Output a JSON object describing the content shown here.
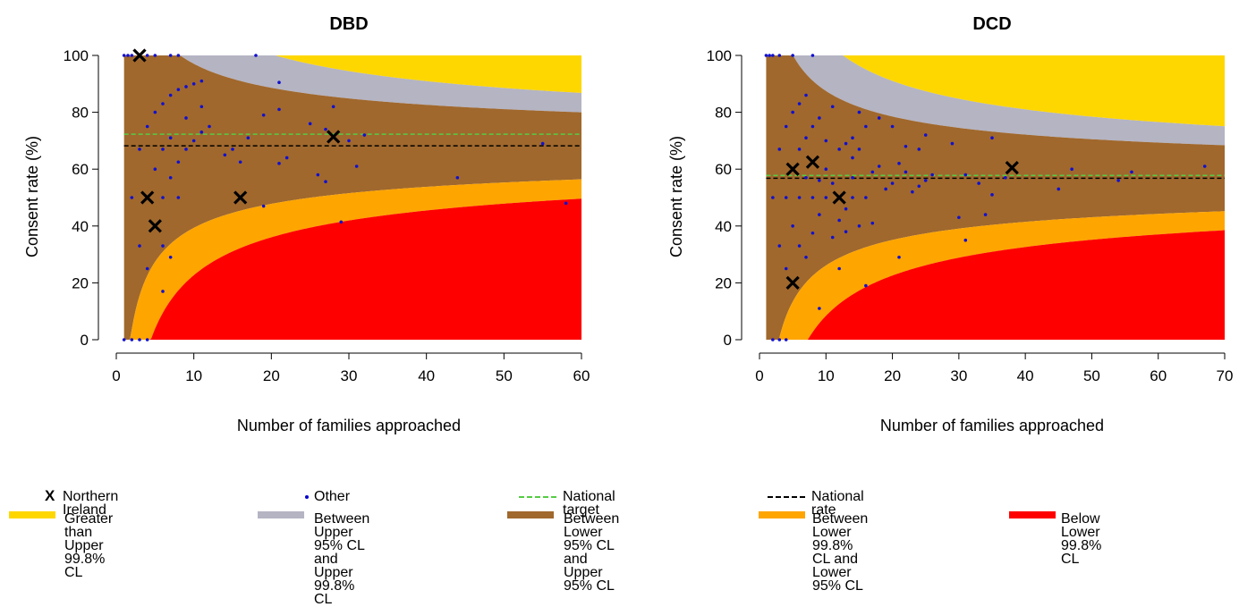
{
  "colors": {
    "above_upper_998": "#FFD700",
    "between_upper_95_998": "#B4B4C3",
    "between_95": "#A0682D",
    "between_lower_998_95": "#FFA500",
    "below_lower_998": "#FF0000",
    "national_target": "#55CC44",
    "national_rate": "#000000",
    "other_point": "#1010D0",
    "ni_marker": "#000000"
  },
  "chart_data": [
    {
      "type": "scatter",
      "title": "DBD",
      "xlabel": "Number of families approached",
      "ylabel": "Consent rate (%)",
      "xlim": [
        0,
        60
      ],
      "ylim": [
        0,
        100
      ],
      "xticks": [
        "0",
        "10",
        "20",
        "30",
        "40",
        "50",
        "60"
      ],
      "yticks": [
        "0",
        "20",
        "40",
        "60",
        "80",
        "100"
      ],
      "x_start": 1,
      "national_target": 72.3,
      "national_rate": 68.2,
      "northern_ireland": [
        {
          "x": 3,
          "y": 100
        },
        {
          "x": 4,
          "y": 50
        },
        {
          "x": 5,
          "y": 40
        },
        {
          "x": 16,
          "y": 50
        },
        {
          "x": 28,
          "y": 71.4
        }
      ],
      "other": [
        {
          "x": 1,
          "y": 100
        },
        {
          "x": 1.5,
          "y": 100
        },
        {
          "x": 2,
          "y": 100
        },
        {
          "x": 4,
          "y": 100
        },
        {
          "x": 5,
          "y": 100
        },
        {
          "x": 7,
          "y": 100
        },
        {
          "x": 8,
          "y": 100
        },
        {
          "x": 18,
          "y": 100
        },
        {
          "x": 1,
          "y": 0
        },
        {
          "x": 2,
          "y": 0
        },
        {
          "x": 3,
          "y": 0
        },
        {
          "x": 4,
          "y": 0
        },
        {
          "x": 2,
          "y": 50
        },
        {
          "x": 3,
          "y": 33
        },
        {
          "x": 3,
          "y": 67
        },
        {
          "x": 4,
          "y": 75
        },
        {
          "x": 4,
          "y": 25
        },
        {
          "x": 5,
          "y": 80
        },
        {
          "x": 5,
          "y": 60
        },
        {
          "x": 6,
          "y": 83
        },
        {
          "x": 6,
          "y": 67
        },
        {
          "x": 6,
          "y": 33
        },
        {
          "x": 6,
          "y": 17
        },
        {
          "x": 6,
          "y": 50
        },
        {
          "x": 7,
          "y": 86
        },
        {
          "x": 7,
          "y": 57
        },
        {
          "x": 7,
          "y": 71
        },
        {
          "x": 7,
          "y": 29
        },
        {
          "x": 8,
          "y": 88
        },
        {
          "x": 8,
          "y": 62.5
        },
        {
          "x": 8,
          "y": 50
        },
        {
          "x": 9,
          "y": 78
        },
        {
          "x": 9,
          "y": 89
        },
        {
          "x": 9,
          "y": 67
        },
        {
          "x": 10,
          "y": 90
        },
        {
          "x": 10,
          "y": 70
        },
        {
          "x": 11,
          "y": 91
        },
        {
          "x": 11,
          "y": 73
        },
        {
          "x": 11,
          "y": 82
        },
        {
          "x": 12,
          "y": 75
        },
        {
          "x": 14,
          "y": 65
        },
        {
          "x": 15,
          "y": 67
        },
        {
          "x": 16,
          "y": 62.5
        },
        {
          "x": 17,
          "y": 71
        },
        {
          "x": 19,
          "y": 79
        },
        {
          "x": 19,
          "y": 47
        },
        {
          "x": 21,
          "y": 90.5
        },
        {
          "x": 21,
          "y": 81
        },
        {
          "x": 21,
          "y": 62
        },
        {
          "x": 22,
          "y": 64
        },
        {
          "x": 25,
          "y": 76
        },
        {
          "x": 26,
          "y": 58
        },
        {
          "x": 27,
          "y": 55.6
        },
        {
          "x": 27,
          "y": 74
        },
        {
          "x": 28,
          "y": 82
        },
        {
          "x": 29,
          "y": 41.4
        },
        {
          "x": 30,
          "y": 70
        },
        {
          "x": 31,
          "y": 61
        },
        {
          "x": 32,
          "y": 72
        },
        {
          "x": 44,
          "y": 57
        },
        {
          "x": 55,
          "y": 69
        },
        {
          "x": 58,
          "y": 48
        }
      ]
    },
    {
      "type": "scatter",
      "title": "DCD",
      "xlabel": "Number of families approached",
      "ylabel": "Consent rate (%)",
      "xlim": [
        0,
        70
      ],
      "ylim": [
        0,
        100
      ],
      "xticks": [
        "0",
        "10",
        "20",
        "30",
        "40",
        "50",
        "60",
        "70"
      ],
      "yticks": [
        "0",
        "20",
        "40",
        "60",
        "80",
        "100"
      ],
      "x_start": 1,
      "national_target": 57.8,
      "national_rate": 56.8,
      "northern_ireland": [
        {
          "x": 5,
          "y": 20
        },
        {
          "x": 5,
          "y": 60
        },
        {
          "x": 8,
          "y": 62.5
        },
        {
          "x": 12,
          "y": 50
        },
        {
          "x": 38,
          "y": 60.5
        }
      ],
      "other": [
        {
          "x": 1,
          "y": 100
        },
        {
          "x": 1.5,
          "y": 100
        },
        {
          "x": 2,
          "y": 100
        },
        {
          "x": 3,
          "y": 100
        },
        {
          "x": 5,
          "y": 100
        },
        {
          "x": 8,
          "y": 100
        },
        {
          "x": 2,
          "y": 0
        },
        {
          "x": 3,
          "y": 0
        },
        {
          "x": 4,
          "y": 0
        },
        {
          "x": 2,
          "y": 50
        },
        {
          "x": 3,
          "y": 33
        },
        {
          "x": 3,
          "y": 67
        },
        {
          "x": 4,
          "y": 50
        },
        {
          "x": 4,
          "y": 25
        },
        {
          "x": 4,
          "y": 75
        },
        {
          "x": 5,
          "y": 40
        },
        {
          "x": 5,
          "y": 80
        },
        {
          "x": 6,
          "y": 50
        },
        {
          "x": 6,
          "y": 67
        },
        {
          "x": 6,
          "y": 83
        },
        {
          "x": 6,
          "y": 33
        },
        {
          "x": 7,
          "y": 71
        },
        {
          "x": 7,
          "y": 86
        },
        {
          "x": 7,
          "y": 29
        },
        {
          "x": 7,
          "y": 57
        },
        {
          "x": 8,
          "y": 50
        },
        {
          "x": 8,
          "y": 75
        },
        {
          "x": 8,
          "y": 37.5
        },
        {
          "x": 9,
          "y": 56
        },
        {
          "x": 9,
          "y": 78
        },
        {
          "x": 9,
          "y": 11
        },
        {
          "x": 9,
          "y": 44
        },
        {
          "x": 10,
          "y": 60
        },
        {
          "x": 10,
          "y": 70
        },
        {
          "x": 10,
          "y": 50
        },
        {
          "x": 11,
          "y": 82
        },
        {
          "x": 11,
          "y": 36
        },
        {
          "x": 11,
          "y": 55
        },
        {
          "x": 12,
          "y": 67
        },
        {
          "x": 12,
          "y": 42
        },
        {
          "x": 12,
          "y": 25
        },
        {
          "x": 13,
          "y": 69
        },
        {
          "x": 13,
          "y": 46
        },
        {
          "x": 13,
          "y": 38
        },
        {
          "x": 14,
          "y": 71
        },
        {
          "x": 14,
          "y": 57
        },
        {
          "x": 14,
          "y": 64
        },
        {
          "x": 14,
          "y": 50
        },
        {
          "x": 15,
          "y": 80
        },
        {
          "x": 15,
          "y": 67
        },
        {
          "x": 15,
          "y": 40
        },
        {
          "x": 16,
          "y": 75
        },
        {
          "x": 16,
          "y": 50
        },
        {
          "x": 16,
          "y": 19
        },
        {
          "x": 17,
          "y": 59
        },
        {
          "x": 17,
          "y": 41
        },
        {
          "x": 18,
          "y": 61
        },
        {
          "x": 18,
          "y": 78
        },
        {
          "x": 19,
          "y": 53
        },
        {
          "x": 20,
          "y": 55
        },
        {
          "x": 20,
          "y": 75
        },
        {
          "x": 21,
          "y": 62
        },
        {
          "x": 21,
          "y": 29
        },
        {
          "x": 22,
          "y": 68
        },
        {
          "x": 22,
          "y": 59
        },
        {
          "x": 23,
          "y": 52
        },
        {
          "x": 24,
          "y": 54
        },
        {
          "x": 24,
          "y": 67
        },
        {
          "x": 25,
          "y": 56
        },
        {
          "x": 25,
          "y": 72
        },
        {
          "x": 26,
          "y": 58
        },
        {
          "x": 29,
          "y": 69
        },
        {
          "x": 30,
          "y": 43
        },
        {
          "x": 31,
          "y": 35
        },
        {
          "x": 31,
          "y": 58
        },
        {
          "x": 33,
          "y": 55
        },
        {
          "x": 34,
          "y": 44
        },
        {
          "x": 35,
          "y": 71
        },
        {
          "x": 35,
          "y": 51
        },
        {
          "x": 37,
          "y": 57
        },
        {
          "x": 45,
          "y": 53
        },
        {
          "x": 47,
          "y": 60
        },
        {
          "x": 54,
          "y": 56
        },
        {
          "x": 56,
          "y": 59
        },
        {
          "x": 67,
          "y": 61
        }
      ]
    }
  ],
  "legend": {
    "markers": [
      {
        "symbol": "X",
        "label": "Northern Ireland"
      },
      {
        "symbol": "dot",
        "label": "Other"
      },
      {
        "symbol": "dash-green",
        "label": "National target"
      },
      {
        "symbol": "dash-black",
        "label": "National rate"
      }
    ],
    "bands": [
      {
        "color_key": "above_upper_998",
        "label": "Greater than Upper\n99.8% CL"
      },
      {
        "color_key": "between_upper_95_998",
        "label": "Between Upper 95% CL\nand Upper 99.8% CL"
      },
      {
        "color_key": "between_95",
        "label": "Between Lower 95% CL\nand Upper 95% CL"
      },
      {
        "color_key": "between_lower_998_95",
        "label": "Between Lower 99.8%\nCL and Lower 95% CL"
      },
      {
        "color_key": "below_lower_998",
        "label": "Below Lower 99.8% CL"
      }
    ]
  }
}
